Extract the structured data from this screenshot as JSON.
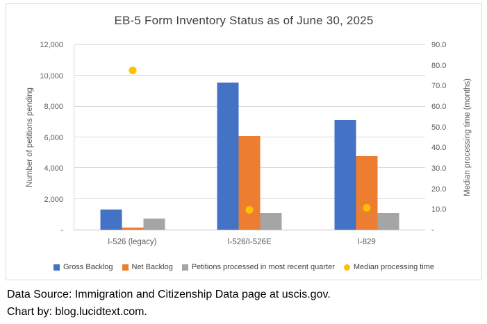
{
  "chart_data": {
    "type": "bar",
    "subtype": "grouped-bars-with-scatter-overlay",
    "title": "EB-5 Form Inventory Status as of June 30, 2025",
    "categories": [
      "I-526 (legacy)",
      "I-526/I-526E",
      "I-829"
    ],
    "series": [
      {
        "name": "Gross Backlog",
        "type": "bar",
        "axis": "left",
        "color": "#4472C4",
        "values": [
          1300,
          9550,
          7150
        ]
      },
      {
        "name": "Net Backlog",
        "type": "bar",
        "axis": "left",
        "color": "#ED7D31",
        "values": [
          140,
          6100,
          4800
        ]
      },
      {
        "name": "Petitions processed in most recent quarter",
        "type": "bar",
        "axis": "left",
        "color": "#A5A5A5",
        "values": [
          700,
          1100,
          1100
        ]
      },
      {
        "name": "Median processing time",
        "type": "scatter",
        "axis": "right",
        "color": "#FFC000",
        "values": [
          77.5,
          9.8,
          10.8
        ]
      }
    ],
    "left_axis": {
      "label": "Number of petitions pending",
      "min": 0,
      "max": 12000,
      "step": 2000,
      "tick_labels": [
        "-",
        "2,000",
        "4,000",
        "6,000",
        "8,000",
        "10,000",
        "12,000"
      ]
    },
    "right_axis": {
      "label": "Median processing time (months)",
      "min": 0,
      "max": 90,
      "step": 10,
      "tick_labels": [
        "-",
        "10.0",
        "20.0",
        "30.0",
        "40.0",
        "50.0",
        "60.0",
        "70.0",
        "80.0",
        "90.0"
      ]
    },
    "grid": true,
    "legend_position": "bottom",
    "frame_border_color": "#d9d9d9",
    "gridline_color": "#d9d9d9"
  },
  "footer": {
    "line1": "Data Source: Immigration and Citizenship Data page at uscis.gov.",
    "line2": "Chart by: blog.lucidtext.com."
  }
}
